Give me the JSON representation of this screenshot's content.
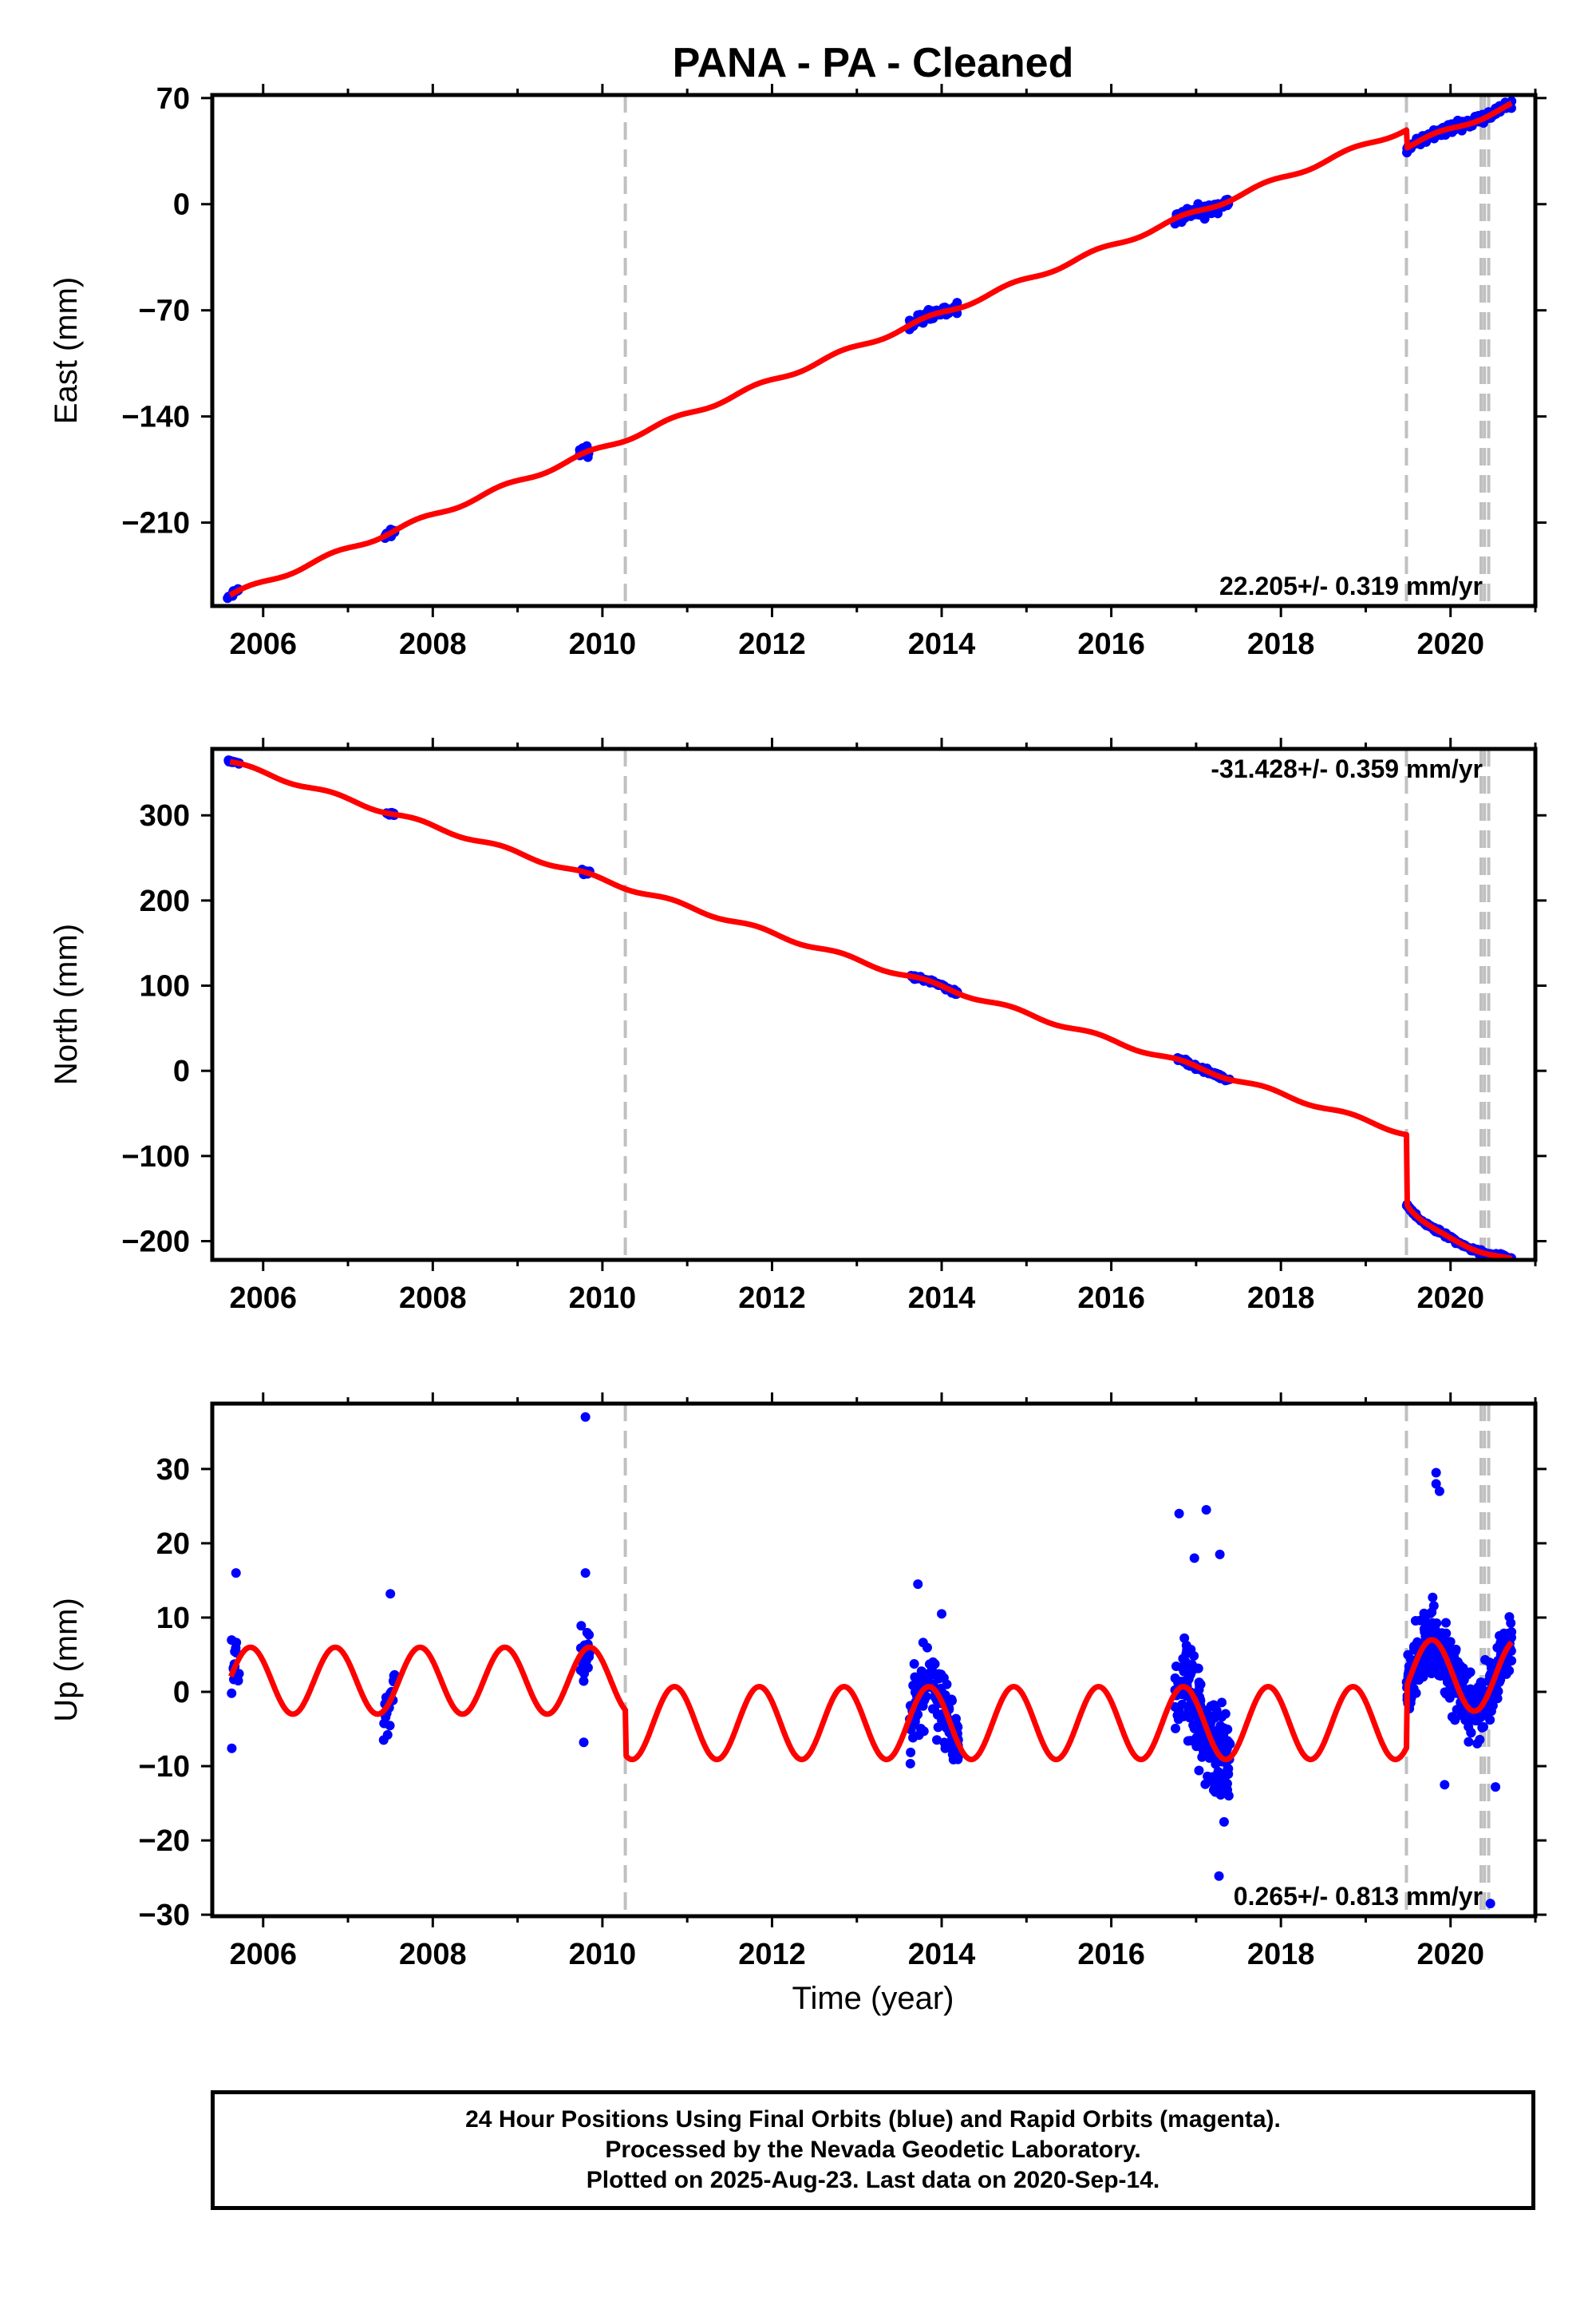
{
  "title": "PANA  - PA - Cleaned",
  "colors": {
    "data": "#0000ff",
    "model": "#ff0000",
    "breaks": "#c0c0c0"
  },
  "chart_data": [
    {
      "type": "scatter",
      "id": "east",
      "ylabel": "East (mm)",
      "xlabel": "",
      "xlim": [
        2005.4,
        2021.0
      ],
      "ylim": [
        -265,
        72
      ],
      "xticks": [
        2006,
        2008,
        2010,
        2012,
        2014,
        2016,
        2018,
        2020
      ],
      "xtick_labels": [
        "2006",
        "2008",
        "2010",
        "2012",
        "2014",
        "2016",
        "2018",
        "2020"
      ],
      "yticks": [
        70,
        0,
        -70,
        -140,
        -210
      ],
      "ytick_labels": [
        "70",
        "0",
        "−70",
        "−140",
        "−210"
      ],
      "rate_label": "22.205+/- 0.319 mm/yr",
      "rate_position": "bottom-right",
      "breaks": [
        2010.27,
        2019.48,
        2020.36,
        2020.4,
        2020.45
      ],
      "model": {
        "rate": 22.205,
        "ref_year": 2005.62,
        "offset": -258,
        "annual_amp": 1.6,
        "annual_phase": 0.3,
        "steps": [
          {
            "year": 2019.48,
            "size": -12,
            "decay_amp": 0,
            "decay_tau": 1
          }
        ]
      },
      "data_windows": [
        {
          "start": 2005.58,
          "end": 2005.72,
          "n": 14,
          "noise": 2.5
        },
        {
          "start": 2007.42,
          "end": 2007.55,
          "n": 14,
          "noise": 2.5
        },
        {
          "start": 2009.73,
          "end": 2009.85,
          "n": 12,
          "noise": 4
        },
        {
          "start": 2013.62,
          "end": 2014.2,
          "n": 70,
          "noise": 3
        },
        {
          "start": 2016.75,
          "end": 2017.4,
          "n": 75,
          "noise": 3.5
        },
        {
          "start": 2019.48,
          "end": 2020.72,
          "n": 180,
          "noise": 3
        }
      ]
    },
    {
      "type": "scatter",
      "id": "north",
      "ylabel": "North (mm)",
      "xlabel": "",
      "xlim": [
        2005.4,
        2021.0
      ],
      "ylim": [
        -222,
        378
      ],
      "xticks": [
        2006,
        2008,
        2010,
        2012,
        2014,
        2016,
        2018,
        2020
      ],
      "xtick_labels": [
        "2006",
        "2008",
        "2010",
        "2012",
        "2014",
        "2016",
        "2018",
        "2020"
      ],
      "yticks": [
        300,
        200,
        100,
        0,
        -100,
        -200
      ],
      "ytick_labels": [
        "300",
        "200",
        "100",
        "0",
        "−100",
        "−200"
      ],
      "rate_label": "-31.428+/- 0.359 mm/yr",
      "rate_position": "top-right",
      "breaks": [
        2010.27,
        2019.48,
        2020.36,
        2020.4,
        2020.45
      ],
      "model": {
        "rate": -31.428,
        "ref_year": 2005.62,
        "offset": 362,
        "annual_amp": 2.5,
        "annual_phase": 0.3,
        "steps": [
          {
            "year": 2019.48,
            "size": -82,
            "decay_amp": -28,
            "decay_tau": 0.22
          }
        ]
      },
      "data_windows": [
        {
          "start": 2005.58,
          "end": 2005.72,
          "n": 14,
          "noise": 1.5
        },
        {
          "start": 2007.42,
          "end": 2007.55,
          "n": 14,
          "noise": 1.5
        },
        {
          "start": 2009.73,
          "end": 2009.85,
          "n": 12,
          "noise": 2.5
        },
        {
          "start": 2013.62,
          "end": 2014.2,
          "n": 70,
          "noise": 2
        },
        {
          "start": 2016.75,
          "end": 2017.4,
          "n": 75,
          "noise": 2.5
        },
        {
          "start": 2019.48,
          "end": 2020.72,
          "n": 180,
          "noise": 2
        }
      ]
    },
    {
      "type": "scatter",
      "id": "up",
      "ylabel": "Up (mm)",
      "xlabel": "Time (year)",
      "xlim": [
        2005.4,
        2021.0
      ],
      "ylim": [
        -30.2,
        38.8
      ],
      "xticks": [
        2006,
        2008,
        2010,
        2012,
        2014,
        2016,
        2018,
        2020
      ],
      "xtick_labels": [
        "2006",
        "2008",
        "2010",
        "2012",
        "2014",
        "2016",
        "2018",
        "2020"
      ],
      "yticks": [
        30,
        20,
        10,
        0,
        -10,
        -20,
        -30
      ],
      "ytick_labels": [
        "30",
        "20",
        "10",
        "0",
        "−10",
        "−20",
        "−30"
      ],
      "rate_label": "0.265+/- 0.813 mm/yr",
      "rate_position": "bottom-right",
      "breaks": [
        2010.27,
        2019.48,
        2020.36,
        2020.4,
        2020.45
      ],
      "model": {
        "segments": [
          {
            "start": 2005.62,
            "end": 2010.27,
            "mean": 1.5,
            "amp": 4.5,
            "period": 1.0,
            "peak": 2005.85
          },
          {
            "start": 2010.27,
            "end": 2019.48,
            "mean": -4.2,
            "amp": 4.9,
            "period": 1.0,
            "peak": 2010.85
          },
          {
            "start": 2019.48,
            "end": 2020.72,
            "mean": 2.2,
            "amp": 4.8,
            "period": 1.0,
            "peak": 2019.78
          }
        ]
      },
      "data_windows": [
        {
          "start": 2005.58,
          "end": 2005.72,
          "n": 22,
          "noise": 4
        },
        {
          "start": 2007.42,
          "end": 2007.55,
          "n": 22,
          "noise": 3.5
        },
        {
          "start": 2009.73,
          "end": 2009.85,
          "n": 22,
          "noise": 4.5
        },
        {
          "start": 2013.62,
          "end": 2014.2,
          "n": 150,
          "noise": 4
        },
        {
          "start": 2016.75,
          "end": 2017.4,
          "n": 200,
          "noise": 5
        },
        {
          "start": 2019.48,
          "end": 2020.72,
          "n": 380,
          "noise": 3.8
        }
      ],
      "outliers": [
        {
          "x": 2009.8,
          "y": 37.0
        },
        {
          "x": 2005.68,
          "y": 16.0
        },
        {
          "x": 2007.5,
          "y": 13.2
        },
        {
          "x": 2009.8,
          "y": 16.0
        },
        {
          "x": 2009.78,
          "y": -6.8
        },
        {
          "x": 2005.63,
          "y": -7.6
        },
        {
          "x": 2013.72,
          "y": 14.5
        },
        {
          "x": 2016.8,
          "y": 24.0
        },
        {
          "x": 2017.12,
          "y": 24.5
        },
        {
          "x": 2016.98,
          "y": 18.0
        },
        {
          "x": 2017.28,
          "y": 18.5
        },
        {
          "x": 2017.27,
          "y": -24.8
        },
        {
          "x": 2019.83,
          "y": 29.5
        },
        {
          "x": 2019.83,
          "y": 28.0
        },
        {
          "x": 2019.87,
          "y": 27.0
        },
        {
          "x": 2019.93,
          "y": -12.5
        },
        {
          "x": 2020.53,
          "y": -12.8
        },
        {
          "x": 2020.47,
          "y": -28.5
        },
        {
          "x": 2014.0,
          "y": 10.5
        },
        {
          "x": 2017.33,
          "y": -17.5
        }
      ]
    }
  ],
  "footer": {
    "line1": "24 Hour Positions Using Final Orbits (blue) and Rapid Orbits (magenta).",
    "line2": "Processed by the Nevada Geodetic Laboratory.",
    "line3": "Plotted on 2025-Aug-23. Last data on 2020-Sep-14."
  }
}
